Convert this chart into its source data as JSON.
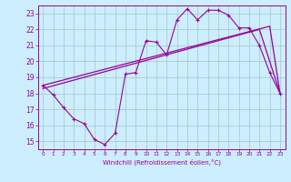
{
  "xlabel": "Windchill (Refroidissement éolien,°C)",
  "bg_color": "#cceeff",
  "grid_color": "#aacccc",
  "line_color": "#990099",
  "xlim": [
    -0.5,
    23.5
  ],
  "ylim": [
    14.5,
    23.5
  ],
  "yticks": [
    15,
    16,
    17,
    18,
    19,
    20,
    21,
    22,
    23
  ],
  "xticks": [
    0,
    1,
    2,
    3,
    4,
    5,
    6,
    7,
    8,
    9,
    10,
    11,
    12,
    13,
    14,
    15,
    16,
    17,
    18,
    19,
    20,
    21,
    22,
    23
  ],
  "temp_line": {
    "x": [
      0,
      1,
      2,
      3,
      4,
      5,
      6,
      7,
      8,
      9,
      10,
      11,
      12,
      13,
      14,
      15,
      16,
      17,
      18,
      19,
      20,
      21,
      22,
      23
    ],
    "y": [
      18.5,
      17.9,
      17.1,
      16.4,
      16.1,
      15.1,
      14.8,
      15.5,
      19.2,
      19.3,
      21.3,
      21.2,
      20.4,
      22.6,
      23.3,
      22.6,
      23.2,
      23.2,
      22.9,
      22.1,
      22.1,
      21.0,
      19.3,
      18.0
    ]
  },
  "linear_line1": {
    "x": [
      0,
      22,
      23
    ],
    "y": [
      18.5,
      22.2,
      18.0
    ]
  },
  "linear_line2": {
    "x": [
      0,
      21,
      23
    ],
    "y": [
      18.3,
      22.0,
      18.0
    ]
  }
}
